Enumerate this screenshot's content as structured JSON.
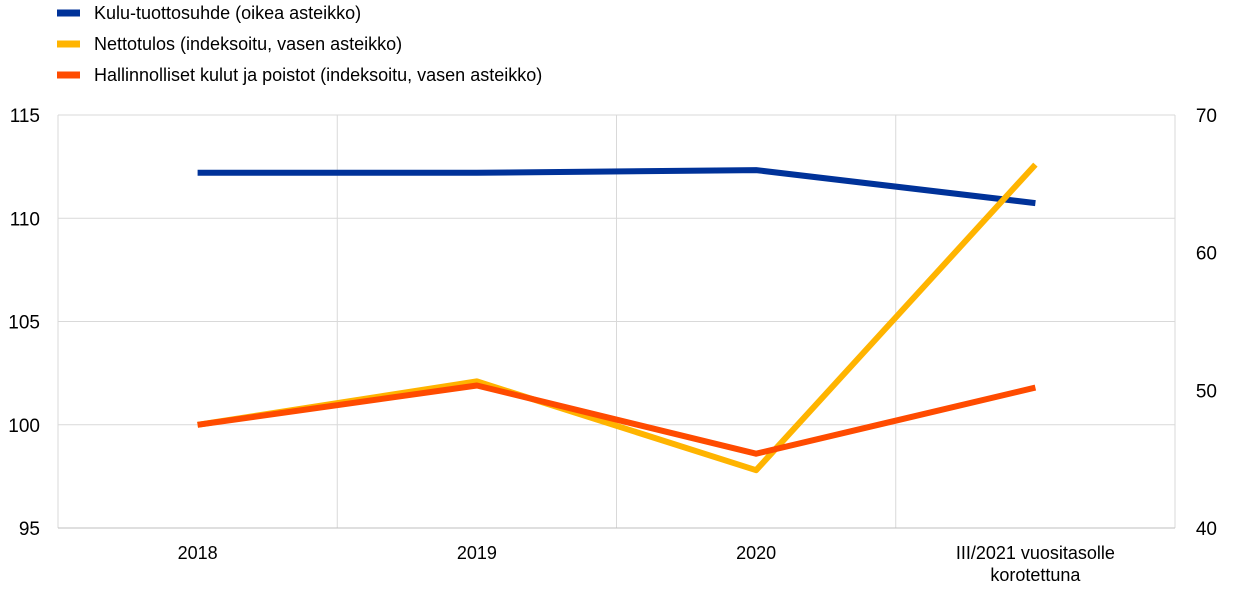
{
  "chart_data": {
    "type": "line",
    "categories": [
      "2018",
      "2019",
      "2020",
      "III/2021 vuositasolle korotettuna"
    ],
    "category_lines": [
      [
        "2018"
      ],
      [
        "2019"
      ],
      [
        "2020"
      ],
      [
        "III/2021 vuositasolle",
        "korotettuna"
      ]
    ],
    "y_left": {
      "min": 95,
      "max": 115,
      "ticks": [
        "95",
        "100",
        "105",
        "110",
        "115"
      ]
    },
    "y_right": {
      "min": 40,
      "max": 70,
      "ticks": [
        "40",
        "50",
        "60",
        "70"
      ]
    },
    "grid": true,
    "legend_position": "top-left",
    "series": [
      {
        "name": "Kulu-tuottosuhde (oikea asteikko)",
        "axis": "right",
        "color": "#003299",
        "values": [
          65.8,
          65.8,
          66.0,
          63.6
        ]
      },
      {
        "name": "Nettotulos (indeksoitu, vasen asteikko)",
        "axis": "left",
        "color": "#FFB400",
        "values": [
          100.0,
          102.1,
          97.8,
          112.6
        ]
      },
      {
        "name": "Hallinnolliset kulut ja poistot (indeksoitu, vasen asteikko)",
        "axis": "left",
        "color": "#FF4B00",
        "values": [
          100.0,
          101.9,
          98.6,
          101.8
        ]
      }
    ]
  }
}
